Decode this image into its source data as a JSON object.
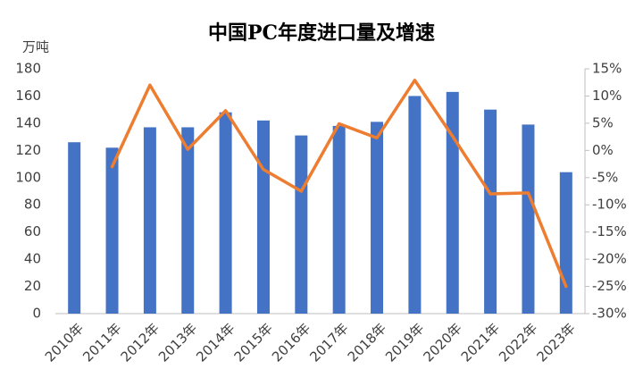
{
  "chart_data": {
    "type": "bar-line",
    "title": "中国PC年度进口量及增速",
    "y_label": "万吨",
    "categories": [
      "2010年",
      "2011年",
      "2012年",
      "2013年",
      "2014年",
      "2015年",
      "2016年",
      "2017年",
      "2018年",
      "2019年",
      "2020年",
      "2021年",
      "2022年",
      "2023年"
    ],
    "series": [
      {
        "type": "bar",
        "color": "#4472c4",
        "values": [
          126,
          122,
          137,
          137,
          148,
          142,
          131,
          138,
          141,
          160,
          163,
          150,
          139,
          104
        ]
      },
      {
        "type": "line",
        "axis": "y2",
        "color": "#ed7d31",
        "values": [
          null,
          -3,
          12,
          0.2,
          7.3,
          -3.5,
          -7.5,
          4.9,
          2.3,
          12.9,
          2.6,
          -8,
          -7.8,
          -25
        ]
      }
    ],
    "ylim": [
      0,
      180
    ],
    "yticks": [
      0,
      20,
      40,
      60,
      80,
      100,
      120,
      140,
      160,
      180
    ],
    "y2lim": [
      -30,
      15
    ],
    "y2ticks": [
      {
        "value": 15,
        "label": "15%"
      },
      {
        "value": 10,
        "label": "10%"
      },
      {
        "value": 5,
        "label": "5%"
      },
      {
        "value": 0,
        "label": "0%"
      },
      {
        "value": -5,
        "label": "-5%"
      },
      {
        "value": -10,
        "label": "-10%"
      },
      {
        "value": -15,
        "label": "-15%"
      },
      {
        "value": -20,
        "label": "-20%"
      },
      {
        "value": -25,
        "label": "-25%"
      },
      {
        "value": -30,
        "label": "-30%"
      }
    ]
  }
}
